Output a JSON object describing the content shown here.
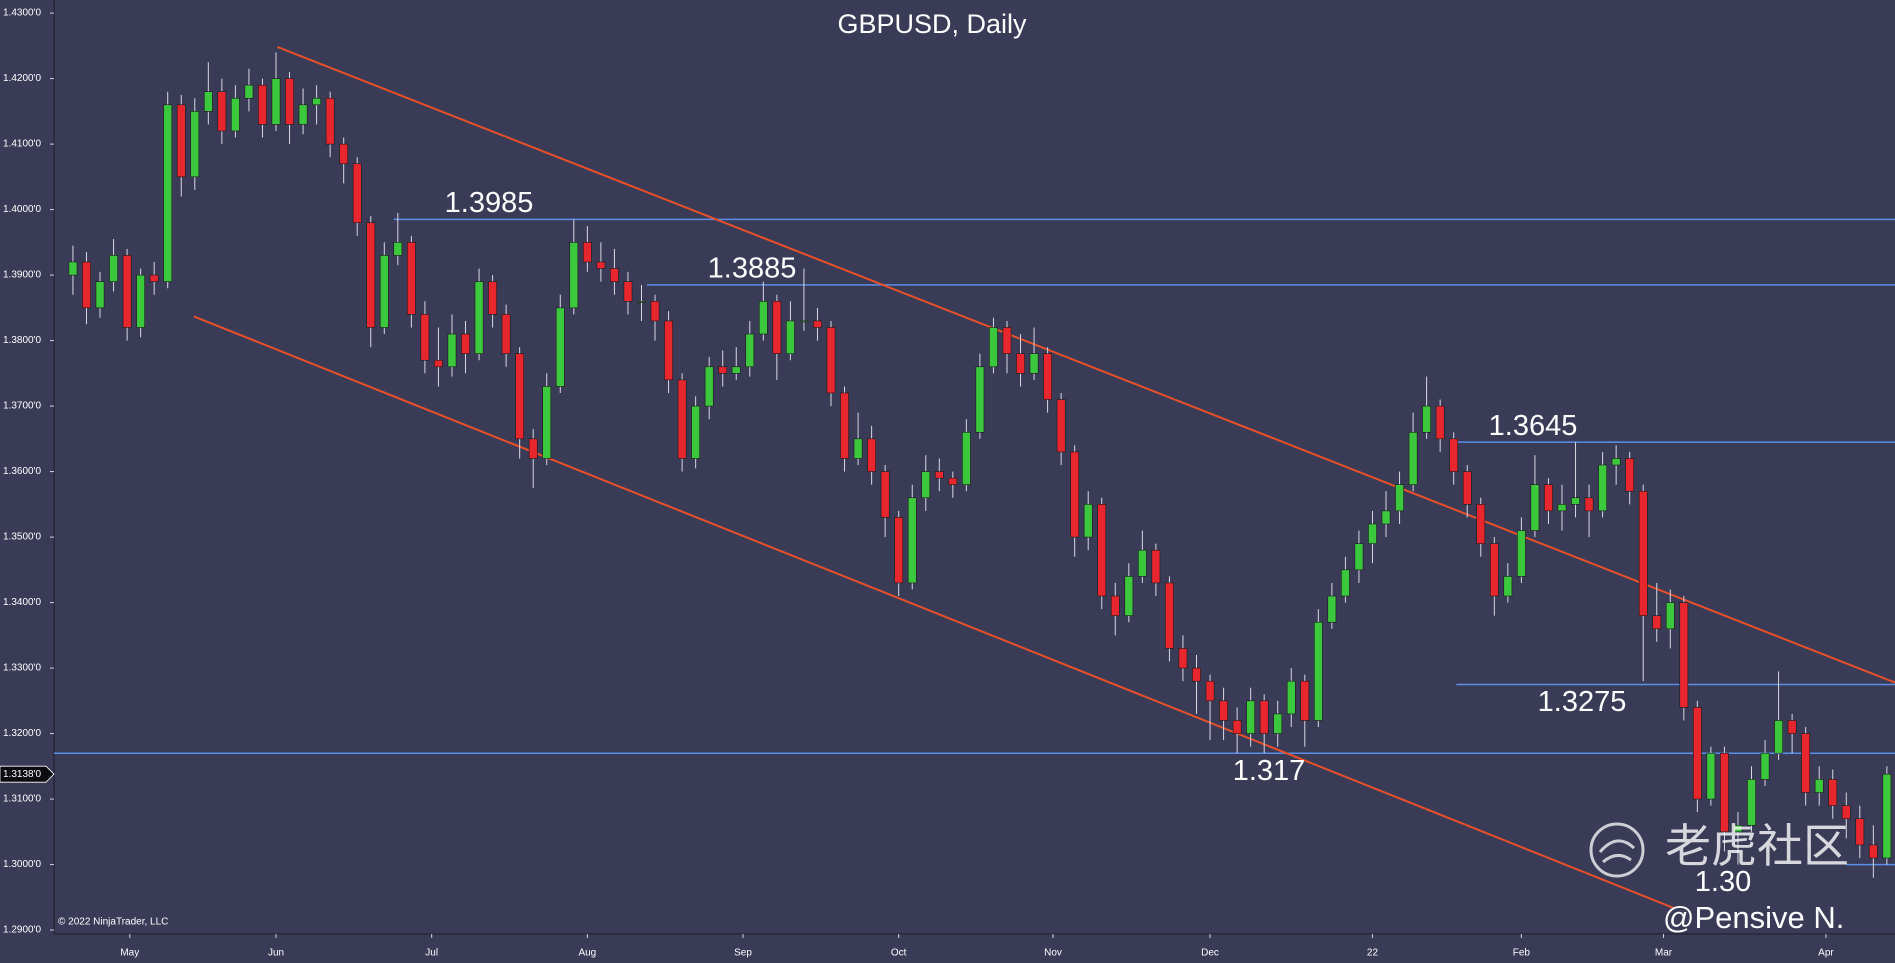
{
  "chart_data": {
    "type": "candlestick",
    "title": "GBPUSD, Daily",
    "copyright": "© 2022 NinjaTrader, LLC",
    "watermark": "老虎社区",
    "author": "@Pensive N.",
    "up_color": "#3cc83c",
    "down_color": "#e8262e",
    "level_color": "#5a8ee8",
    "trend_color": "#e8502a",
    "xlim": [
      -1.4,
      134.6
    ],
    "ylim": [
      1.2894,
      1.432
    ],
    "yticks": [
      {
        "value": 1.29,
        "label": "1.2900'0"
      },
      {
        "value": 1.3,
        "label": "1.3000'0"
      },
      {
        "value": 1.31,
        "label": "1.3100'0"
      },
      {
        "value": 1.32,
        "label": "1.3200'0"
      },
      {
        "value": 1.33,
        "label": "1.3300'0"
      },
      {
        "value": 1.34,
        "label": "1.3400'0"
      },
      {
        "value": 1.35,
        "label": "1.3500'0"
      },
      {
        "value": 1.36,
        "label": "1.3600'0"
      },
      {
        "value": 1.37,
        "label": "1.3700'0"
      },
      {
        "value": 1.38,
        "label": "1.3800'0"
      },
      {
        "value": 1.39,
        "label": "1.3900'0"
      },
      {
        "value": 1.4,
        "label": "1.4000'0"
      },
      {
        "value": 1.41,
        "label": "1.4100'0"
      },
      {
        "value": 1.42,
        "label": "1.4200'0"
      },
      {
        "value": 1.43,
        "label": "1.4300'0"
      }
    ],
    "xticks": [
      {
        "value": 4.2,
        "label": "May"
      },
      {
        "value": 15,
        "label": "Jun"
      },
      {
        "value": 26.5,
        "label": "Jul"
      },
      {
        "value": 38,
        "label": "Aug"
      },
      {
        "value": 49.5,
        "label": "Sep"
      },
      {
        "value": 61,
        "label": "Oct"
      },
      {
        "value": 72.4,
        "label": "Nov"
      },
      {
        "value": 84,
        "label": "Dec"
      },
      {
        "value": 96,
        "label": "22"
      },
      {
        "value": 107,
        "label": "Feb"
      },
      {
        "value": 117.5,
        "label": "Mar"
      },
      {
        "value": 129.5,
        "label": "Apr"
      }
    ],
    "last_price": {
      "value": 1.3138,
      "label": "1.3138'0"
    },
    "levels": [
      {
        "value": 1.3985,
        "label": "1.3985",
        "start": 23.7,
        "label_position": "above"
      },
      {
        "value": 1.3885,
        "label": "1.3885",
        "start": 42.4,
        "label_position": "above"
      },
      {
        "value": 1.3645,
        "label": "1.3645",
        "start": 102.2,
        "label_position": "above"
      },
      {
        "value": 1.3275,
        "label": "1.3275",
        "start": 102.2,
        "label_position": "below"
      },
      {
        "value": 1.317,
        "label": "1.317",
        "start": -1.4,
        "label_position": "below"
      },
      {
        "value": 1.3,
        "label": "1.30",
        "start": 131,
        "label_position": "below"
      }
    ],
    "trendlines": [
      {
        "start": [
          15.1,
          1.42483
        ],
        "end": [
          134.6,
          1.32779
        ]
      },
      {
        "start": [
          8.93,
          1.38369
        ],
        "end": [
          118.3,
          1.29333
        ]
      }
    ],
    "candles": [
      [
        1.39,
        1.3945,
        1.387,
        1.392
      ],
      [
        1.392,
        1.3935,
        1.3825,
        1.385
      ],
      [
        1.385,
        1.3905,
        1.3835,
        1.389
      ],
      [
        1.389,
        1.3955,
        1.3875,
        1.393
      ],
      [
        1.393,
        1.394,
        1.38,
        1.382
      ],
      [
        1.382,
        1.391,
        1.3805,
        1.39
      ],
      [
        1.39,
        1.392,
        1.387,
        1.389
      ],
      [
        1.389,
        1.418,
        1.388,
        1.416
      ],
      [
        1.416,
        1.4175,
        1.402,
        1.405
      ],
      [
        1.405,
        1.417,
        1.403,
        1.415
      ],
      [
        1.415,
        1.4225,
        1.413,
        1.418
      ],
      [
        1.418,
        1.42,
        1.41,
        1.412
      ],
      [
        1.412,
        1.419,
        1.411,
        1.417
      ],
      [
        1.417,
        1.4215,
        1.415,
        1.419
      ],
      [
        1.419,
        1.42,
        1.411,
        1.413
      ],
      [
        1.413,
        1.424,
        1.412,
        1.42
      ],
      [
        1.42,
        1.421,
        1.41,
        1.413
      ],
      [
        1.413,
        1.4185,
        1.4115,
        1.416
      ],
      [
        1.416,
        1.419,
        1.413,
        1.417
      ],
      [
        1.417,
        1.418,
        1.408,
        1.41
      ],
      [
        1.41,
        1.411,
        1.404,
        1.407
      ],
      [
        1.407,
        1.408,
        1.396,
        1.398
      ],
      [
        1.398,
        1.399,
        1.379,
        1.382
      ],
      [
        1.382,
        1.395,
        1.381,
        1.393
      ],
      [
        1.393,
        1.3995,
        1.3915,
        1.395
      ],
      [
        1.395,
        1.396,
        1.382,
        1.384
      ],
      [
        1.384,
        1.386,
        1.375,
        1.377
      ],
      [
        1.377,
        1.382,
        1.373,
        1.376
      ],
      [
        1.376,
        1.384,
        1.3745,
        1.381
      ],
      [
        1.381,
        1.383,
        1.375,
        1.378
      ],
      [
        1.378,
        1.391,
        1.377,
        1.389
      ],
      [
        1.389,
        1.39,
        1.382,
        1.384
      ],
      [
        1.384,
        1.3855,
        1.376,
        1.378
      ],
      [
        1.378,
        1.379,
        1.362,
        1.365
      ],
      [
        1.365,
        1.3665,
        1.3575,
        1.362
      ],
      [
        1.362,
        1.375,
        1.361,
        1.373
      ],
      [
        1.373,
        1.387,
        1.372,
        1.385
      ],
      [
        1.385,
        1.3985,
        1.384,
        1.395
      ],
      [
        1.395,
        1.3975,
        1.3905,
        1.392
      ],
      [
        1.392,
        1.395,
        1.389,
        1.391
      ],
      [
        1.391,
        1.394,
        1.387,
        1.389
      ],
      [
        1.389,
        1.3905,
        1.384,
        1.386
      ],
      [
        1.386,
        1.3885,
        1.383,
        1.386
      ],
      [
        1.386,
        1.387,
        1.38,
        1.383
      ],
      [
        1.383,
        1.3845,
        1.372,
        1.374
      ],
      [
        1.374,
        1.375,
        1.36,
        1.362
      ],
      [
        1.362,
        1.3715,
        1.3605,
        1.37
      ],
      [
        1.37,
        1.3775,
        1.368,
        1.376
      ],
      [
        1.376,
        1.3785,
        1.373,
        1.375
      ],
      [
        1.375,
        1.379,
        1.374,
        1.376
      ],
      [
        1.376,
        1.383,
        1.3745,
        1.381
      ],
      [
        1.381,
        1.389,
        1.38,
        1.386
      ],
      [
        1.386,
        1.387,
        1.374,
        1.378
      ],
      [
        1.378,
        1.386,
        1.377,
        1.383
      ],
      [
        1.383,
        1.391,
        1.3815,
        1.383
      ],
      [
        1.383,
        1.385,
        1.38,
        1.382
      ],
      [
        1.382,
        1.383,
        1.37,
        1.372
      ],
      [
        1.372,
        1.373,
        1.36,
        1.362
      ],
      [
        1.362,
        1.369,
        1.361,
        1.365
      ],
      [
        1.365,
        1.367,
        1.358,
        1.36
      ],
      [
        1.36,
        1.361,
        1.35,
        1.353
      ],
      [
        1.353,
        1.354,
        1.341,
        1.343
      ],
      [
        1.343,
        1.358,
        1.342,
        1.356
      ],
      [
        1.356,
        1.3625,
        1.354,
        1.36
      ],
      [
        1.36,
        1.362,
        1.357,
        1.359
      ],
      [
        1.359,
        1.36,
        1.356,
        1.358
      ],
      [
        1.358,
        1.368,
        1.357,
        1.366
      ],
      [
        1.366,
        1.378,
        1.365,
        1.376
      ],
      [
        1.376,
        1.3835,
        1.375,
        1.382
      ],
      [
        1.382,
        1.383,
        1.375,
        1.378
      ],
      [
        1.378,
        1.381,
        1.373,
        1.375
      ],
      [
        1.375,
        1.382,
        1.374,
        1.378
      ],
      [
        1.378,
        1.379,
        1.369,
        1.371
      ],
      [
        1.371,
        1.372,
        1.361,
        1.363
      ],
      [
        1.363,
        1.364,
        1.347,
        1.35
      ],
      [
        1.35,
        1.357,
        1.348,
        1.355
      ],
      [
        1.355,
        1.356,
        1.339,
        1.341
      ],
      [
        1.341,
        1.343,
        1.335,
        1.338
      ],
      [
        1.338,
        1.346,
        1.337,
        1.344
      ],
      [
        1.344,
        1.351,
        1.343,
        1.348
      ],
      [
        1.348,
        1.349,
        1.341,
        1.343
      ],
      [
        1.343,
        1.344,
        1.331,
        1.333
      ],
      [
        1.333,
        1.335,
        1.328,
        1.33
      ],
      [
        1.33,
        1.332,
        1.323,
        1.328
      ],
      [
        1.328,
        1.329,
        1.319,
        1.325
      ],
      [
        1.325,
        1.327,
        1.319,
        1.322
      ],
      [
        1.322,
        1.324,
        1.317,
        1.32
      ],
      [
        1.32,
        1.327,
        1.318,
        1.325
      ],
      [
        1.325,
        1.326,
        1.317,
        1.32
      ],
      [
        1.32,
        1.325,
        1.318,
        1.323
      ],
      [
        1.323,
        1.33,
        1.321,
        1.328
      ],
      [
        1.328,
        1.329,
        1.318,
        1.322
      ],
      [
        1.322,
        1.339,
        1.321,
        1.337
      ],
      [
        1.337,
        1.343,
        1.336,
        1.341
      ],
      [
        1.341,
        1.347,
        1.34,
        1.345
      ],
      [
        1.345,
        1.351,
        1.343,
        1.349
      ],
      [
        1.349,
        1.354,
        1.346,
        1.352
      ],
      [
        1.352,
        1.357,
        1.35,
        1.354
      ],
      [
        1.354,
        1.36,
        1.352,
        1.358
      ],
      [
        1.358,
        1.369,
        1.357,
        1.366
      ],
      [
        1.366,
        1.3745,
        1.365,
        1.37
      ],
      [
        1.37,
        1.371,
        1.363,
        1.365
      ],
      [
        1.365,
        1.366,
        1.358,
        1.36
      ],
      [
        1.36,
        1.361,
        1.353,
        1.355
      ],
      [
        1.355,
        1.356,
        1.347,
        1.349
      ],
      [
        1.349,
        1.35,
        1.338,
        1.341
      ],
      [
        1.341,
        1.346,
        1.34,
        1.344
      ],
      [
        1.344,
        1.353,
        1.343,
        1.351
      ],
      [
        1.351,
        1.3625,
        1.35,
        1.358
      ],
      [
        1.358,
        1.359,
        1.352,
        1.354
      ],
      [
        1.354,
        1.358,
        1.351,
        1.355
      ],
      [
        1.355,
        1.3645,
        1.353,
        1.356
      ],
      [
        1.356,
        1.358,
        1.35,
        1.354
      ],
      [
        1.354,
        1.363,
        1.353,
        1.361
      ],
      [
        1.361,
        1.364,
        1.358,
        1.362
      ],
      [
        1.362,
        1.363,
        1.355,
        1.357
      ],
      [
        1.357,
        1.358,
        1.328,
        1.338
      ],
      [
        1.338,
        1.343,
        1.334,
        1.336
      ],
      [
        1.336,
        1.342,
        1.333,
        1.34
      ],
      [
        1.34,
        1.341,
        1.322,
        1.324
      ],
      [
        1.324,
        1.325,
        1.308,
        1.31
      ],
      [
        1.31,
        1.318,
        1.309,
        1.317
      ],
      [
        1.317,
        1.318,
        1.302,
        1.305
      ],
      [
        1.305,
        1.308,
        1.3,
        1.306
      ],
      [
        1.306,
        1.315,
        1.305,
        1.313
      ],
      [
        1.313,
        1.319,
        1.312,
        1.317
      ],
      [
        1.317,
        1.3295,
        1.316,
        1.322
      ],
      [
        1.322,
        1.323,
        1.317,
        1.32
      ],
      [
        1.32,
        1.321,
        1.309,
        1.311
      ],
      [
        1.311,
        1.315,
        1.309,
        1.313
      ],
      [
        1.313,
        1.3145,
        1.307,
        1.309
      ],
      [
        1.309,
        1.311,
        1.304,
        1.307
      ],
      [
        1.307,
        1.309,
        1.301,
        1.303
      ],
      [
        1.303,
        1.306,
        1.298,
        1.301
      ],
      [
        1.301,
        1.315,
        1.3,
        1.3138
      ]
    ]
  }
}
